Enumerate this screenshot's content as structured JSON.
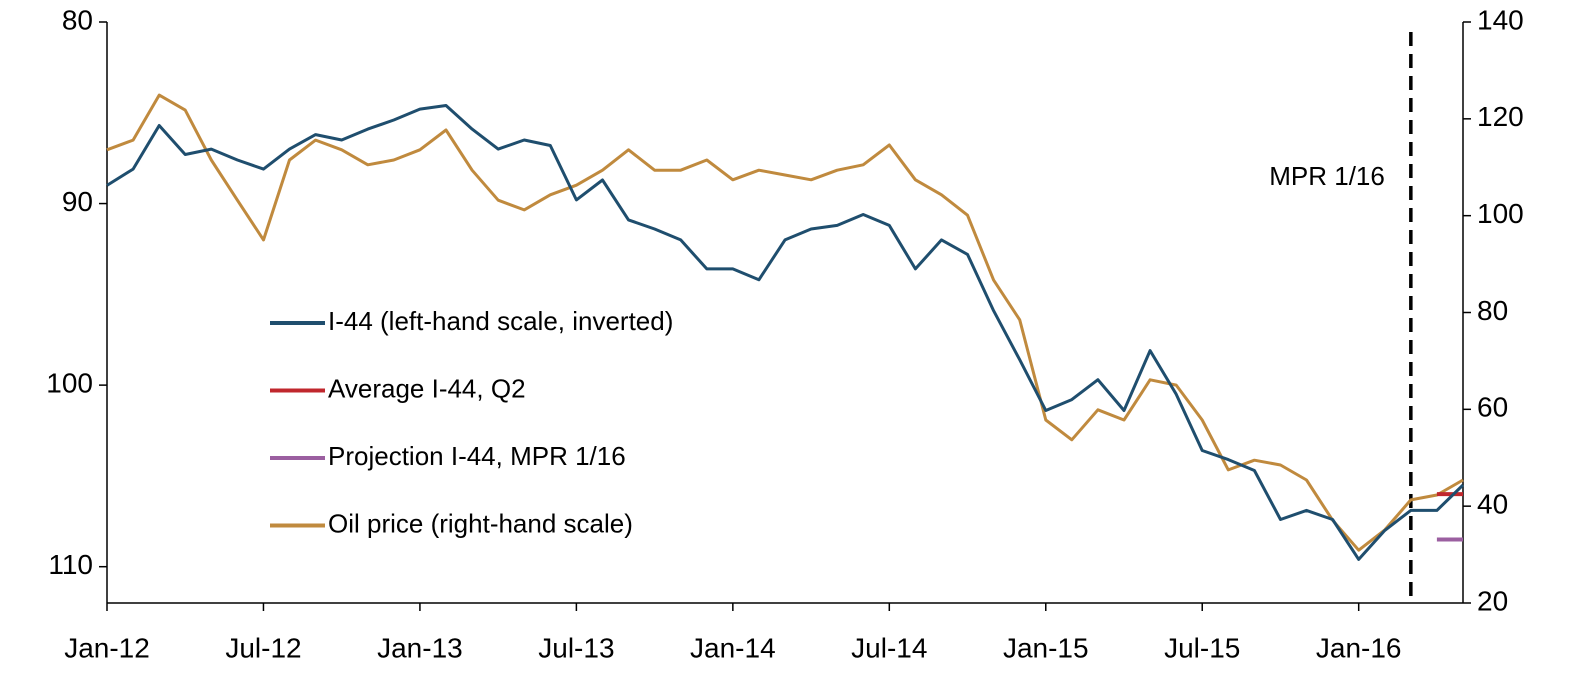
{
  "chart_data": {
    "type": "line",
    "x": [
      "2012-01",
      "2012-02",
      "2012-03",
      "2012-04",
      "2012-05",
      "2012-06",
      "2012-07",
      "2012-08",
      "2012-09",
      "2012-10",
      "2012-11",
      "2012-12",
      "2013-01",
      "2013-02",
      "2013-03",
      "2013-04",
      "2013-05",
      "2013-06",
      "2013-07",
      "2013-08",
      "2013-09",
      "2013-10",
      "2013-11",
      "2013-12",
      "2014-01",
      "2014-02",
      "2014-03",
      "2014-04",
      "2014-05",
      "2014-06",
      "2014-07",
      "2014-08",
      "2014-09",
      "2014-10",
      "2014-11",
      "2014-12",
      "2015-01",
      "2015-02",
      "2015-03",
      "2015-04",
      "2015-05",
      "2015-06",
      "2015-07",
      "2015-08",
      "2015-09",
      "2015-10",
      "2015-11",
      "2015-12",
      "2016-01",
      "2016-02",
      "2016-03",
      "2016-04",
      "2016-05"
    ],
    "series": [
      {
        "name": "I-44 (left-hand scale, inverted)",
        "color": "#1f4e6e",
        "axis": "y",
        "values": [
          89.0,
          88.1,
          85.7,
          87.3,
          87.0,
          87.6,
          88.1,
          87.0,
          86.2,
          86.5,
          85.9,
          85.4,
          84.8,
          84.6,
          85.9,
          87.0,
          86.5,
          86.8,
          89.8,
          88.7,
          90.9,
          91.4,
          92.0,
          93.6,
          93.6,
          94.2,
          92.0,
          91.4,
          91.2,
          90.6,
          91.2,
          93.6,
          92.0,
          92.8,
          95.9,
          98.6,
          101.4,
          100.8,
          99.7,
          101.4,
          98.1,
          100.5,
          103.6,
          104.1,
          104.7,
          107.4,
          106.9,
          107.4,
          109.6,
          108.0,
          106.9,
          106.9,
          105.5
        ]
      },
      {
        "name": "Average I-44, Q2",
        "color": "#c0272d",
        "axis": "y",
        "x": [
          "2016-04",
          "2016-05"
        ],
        "values": [
          106,
          106
        ]
      },
      {
        "name": "Projection I-44, MPR 1/16",
        "color": "#9b5fa0",
        "axis": "y",
        "x": [
          "2016-04",
          "2016-05"
        ],
        "values": [
          108.5,
          108.5
        ]
      },
      {
        "name": "Oil price (right-hand scale)",
        "color": "#c08a3e",
        "axis": "y2",
        "values": [
          113.6,
          115.6,
          124.9,
          121.8,
          111.5,
          103.2,
          95.0,
          111.5,
          115.6,
          113.6,
          110.5,
          111.5,
          113.6,
          117.7,
          109.4,
          103.2,
          101.2,
          104.3,
          106.3,
          109.4,
          113.6,
          109.4,
          109.4,
          111.5,
          107.4,
          109.4,
          108.4,
          107.4,
          109.4,
          110.5,
          114.6,
          107.4,
          104.3,
          100.1,
          86.7,
          78.5,
          57.8,
          53.7,
          59.9,
          57.8,
          66.1,
          65.0,
          57.8,
          47.5,
          49.5,
          48.5,
          45.4,
          37.1,
          30.9,
          35.1,
          41.3,
          42.3,
          45.4
        ]
      }
    ],
    "xlim": [
      "2012-01",
      "2016-05"
    ],
    "xticks": [
      {
        "value": "2012-01",
        "label": "Jan-12"
      },
      {
        "value": "2012-07",
        "label": "Jul-12"
      },
      {
        "value": "2013-01",
        "label": "Jan-13"
      },
      {
        "value": "2013-07",
        "label": "Jul-13"
      },
      {
        "value": "2014-01",
        "label": "Jan-14"
      },
      {
        "value": "2014-07",
        "label": "Jul-14"
      },
      {
        "value": "2015-01",
        "label": "Jan-15"
      },
      {
        "value": "2015-07",
        "label": "Jul-15"
      },
      {
        "value": "2016-01",
        "label": "Jan-16"
      }
    ],
    "ylim": [
      80,
      112
    ],
    "y_inverted": true,
    "yticks": [
      80,
      90,
      100,
      110
    ],
    "y2lim": [
      20,
      140
    ],
    "y2ticks": [
      20,
      40,
      60,
      80,
      100,
      120,
      140
    ],
    "annotation": {
      "text": "MPR 1/16",
      "x": "2016-03"
    },
    "legend": "left"
  }
}
